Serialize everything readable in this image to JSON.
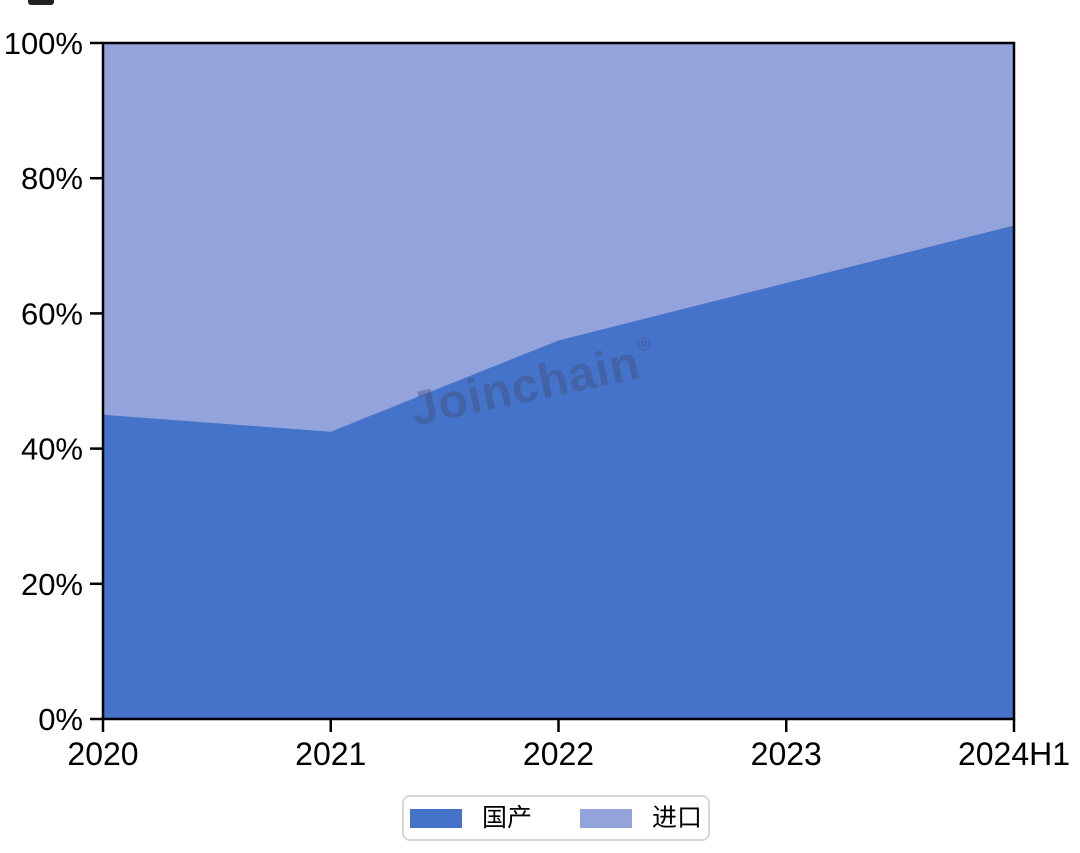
{
  "watermark": {
    "text": "Joinchain",
    "mark": "®"
  },
  "chart_data": {
    "type": "area",
    "variant": "percent-stacked",
    "title": "",
    "xlabel": "",
    "ylabel": "",
    "categories": [
      "2020",
      "2021",
      "2022",
      "2023",
      "2024H1"
    ],
    "series": [
      {
        "name": "国产",
        "color": "#4573C9",
        "values": [
          45,
          42.5,
          56,
          64.5,
          73
        ]
      },
      {
        "name": "进口",
        "color": "#93A3DC",
        "values": [
          55,
          57.5,
          44,
          35.5,
          27
        ]
      }
    ],
    "ylim": [
      0,
      100
    ],
    "ytick_values": [
      0,
      20,
      40,
      60,
      80,
      100
    ],
    "ytick_labels": [
      "0%",
      "20%",
      "40%",
      "60%",
      "80%",
      "100%"
    ],
    "grid": false,
    "frame": true,
    "axis_color": "#000000",
    "legend_position": "bottom"
  }
}
